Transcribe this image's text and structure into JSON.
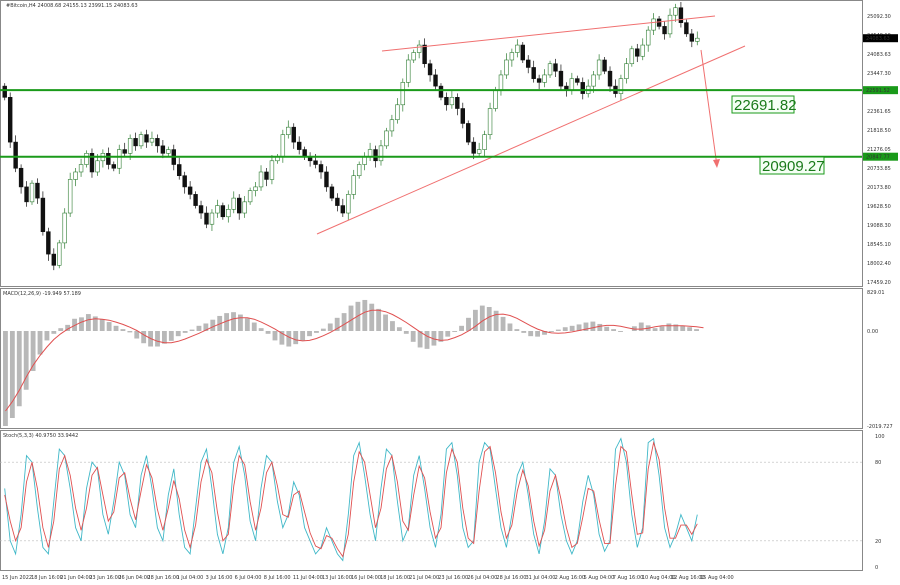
{
  "header": {
    "symbol_info": "#Bitcoin,H4  24008.68 24155.13 23991.15 24083.63",
    "macd_info": "MACD(12,26,9) -19.949 57.189",
    "stoch_info": "Stoch(5,3,3) 40.9750 33.9442"
  },
  "colors": {
    "bull": "#2e7d32",
    "bear": "#111111",
    "support_line": "#1a9a1a",
    "trend_line": "#f07070",
    "macd_hist": "#b8b8b8",
    "signal": "#e05050",
    "stoch_main": "#40b8c8",
    "stoch_signal": "#e05050"
  },
  "levels": {
    "upper_value": "22691.82",
    "lower_value": "20909.27",
    "upper_price": 22691.82,
    "lower_price": 20909.27,
    "upper_tag": "22591.52",
    "lower_tag": "20847.77"
  },
  "chart_data": [
    {
      "type": "candlestick",
      "title": "#Bitcoin,H4",
      "timeframe": "H4",
      "ylim": [
        17499.0,
        25000.0
      ],
      "price_scale_labels": [
        "25092.30",
        "24549.10",
        "24083.63",
        "23447.30",
        "22904.10",
        "22361.65",
        "21818.50",
        "21276.05",
        "20733.85",
        "20173.80",
        "19628.50",
        "19088.30",
        "18545.10",
        "18002.40",
        "17459.20"
      ],
      "x_tick_labels": [
        "15 Jun 2022",
        "18 Jun 16:00",
        "21 Jun 04:00",
        "23 Jun 16:00",
        "26 Jun 04:00",
        "28 Jun 16:00",
        "1 Jul 04:00",
        "3 Jul 16:00",
        "6 Jul 04:00",
        "8 Jul 16:00",
        "11 Jul 04:00",
        "13 Jul 16:00",
        "16 Jul 04:00",
        "18 Jul 16:00",
        "21 Jul 04:00",
        "23 Jul 16:00",
        "26 Jul 04:00",
        "28 Jul 16:00",
        "31 Jul 04:00",
        "2 Aug 16:00",
        "5 Aug 04:00",
        "7 Aug 16:00",
        "10 Aug 04:00",
        "12 Aug 16:00",
        "15 Aug 04:00"
      ],
      "close_path": [
        22500,
        21300,
        20600,
        20100,
        19700,
        20200,
        19800,
        18900,
        18300,
        18000,
        18600,
        19400,
        20300,
        20500,
        20700,
        21000,
        20500,
        20800,
        21000,
        20700,
        20600,
        21100,
        21000,
        21400,
        21200,
        21500,
        21300,
        21400,
        21200,
        21000,
        21100,
        20700,
        20400,
        20100,
        19900,
        19600,
        19400,
        19100,
        19400,
        19600,
        19300,
        19500,
        19800,
        19400,
        19700,
        20000,
        20100,
        20500,
        20300,
        20800,
        20900,
        21500,
        21700,
        21300,
        21100,
        20900,
        20800,
        20700,
        20500,
        20100,
        19800,
        19600,
        19400,
        19900,
        20400,
        20700,
        20900,
        21100,
        20800,
        21200,
        21600,
        21900,
        22300,
        22900,
        23500,
        23700,
        23900,
        23400,
        23100,
        22800,
        22500,
        22300,
        22500,
        22200,
        21800,
        21300,
        21000,
        21100,
        21500,
        22200,
        22700,
        23100,
        23500,
        23700,
        23900,
        23500,
        23300,
        23000,
        22900,
        23100,
        23400,
        23200,
        22800,
        22700,
        23000,
        22900,
        22600,
        22800,
        23100,
        23500,
        23200,
        22800,
        22600,
        23000,
        23400,
        23800,
        23600,
        23900,
        24300,
        24600,
        24400,
        24200,
        24700,
        24900,
        24500,
        24200,
        24000,
        24083.63
      ],
      "current_price": "24083.63"
    },
    {
      "type": "line",
      "title": "MACD(12,26,9)",
      "series": [
        {
          "name": "MACD"
        },
        {
          "name": "Signal"
        }
      ],
      "scale_labels": [
        "829.01",
        "0.00",
        "-2019.727"
      ],
      "histogram_path": [
        -2019,
        -1850,
        -1600,
        -1250,
        -850,
        -500,
        -200,
        -60,
        60,
        130,
        260,
        290,
        360,
        310,
        250,
        190,
        110,
        40,
        -30,
        -160,
        -260,
        -330,
        -330,
        -270,
        -210,
        -110,
        -40,
        30,
        110,
        160,
        240,
        320,
        380,
        400,
        350,
        270,
        180,
        60,
        -60,
        -200,
        -290,
        -330,
        -280,
        -200,
        -110,
        -40,
        50,
        160,
        280,
        380,
        540,
        620,
        660,
        580,
        470,
        350,
        210,
        80,
        -60,
        -230,
        -350,
        -380,
        -310,
        -230,
        -120,
        -20,
        110,
        280,
        450,
        540,
        510,
        430,
        300,
        160,
        40,
        -40,
        -110,
        -120,
        -80,
        -20,
        30,
        80,
        110,
        140,
        180,
        200,
        150,
        90,
        40,
        -20,
        0,
        100,
        180,
        120,
        60,
        100,
        160,
        140,
        110,
        80,
        40
      ],
      "signal_path": [
        -1700,
        -1500,
        -1260,
        -980,
        -730,
        -520,
        -340,
        -180,
        -60,
        40,
        120,
        190,
        240,
        260,
        250,
        230,
        190,
        140,
        80,
        10,
        -80,
        -160,
        -220,
        -250,
        -250,
        -220,
        -170,
        -110,
        -50,
        20,
        90,
        150,
        210,
        260,
        280,
        280,
        250,
        190,
        120,
        40,
        -50,
        -130,
        -190,
        -210,
        -200,
        -160,
        -100,
        -30,
        50,
        140,
        230,
        320,
        400,
        440,
        440,
        410,
        350,
        270,
        180,
        80,
        -20,
        -110,
        -170,
        -200,
        -190,
        -140,
        -80,
        0,
        100,
        210,
        300,
        350,
        360,
        330,
        270,
        190,
        110,
        40,
        -10,
        -40,
        -50,
        -40,
        -20,
        10,
        40,
        70,
        100,
        120,
        120,
        100,
        70,
        40,
        40,
        60,
        90,
        110,
        110,
        110,
        110,
        100,
        90,
        70
      ]
    },
    {
      "type": "line",
      "title": "Stoch(5,3,3)",
      "series": [
        {
          "name": "%K"
        },
        {
          "name": "%D"
        }
      ],
      "scale_labels": [
        "100",
        "80",
        "20",
        "0"
      ],
      "k_path": [
        60,
        20,
        10,
        40,
        85,
        80,
        45,
        15,
        10,
        50,
        90,
        85,
        60,
        30,
        20,
        60,
        80,
        75,
        40,
        25,
        50,
        80,
        70,
        40,
        30,
        70,
        85,
        60,
        30,
        20,
        55,
        75,
        40,
        15,
        10,
        45,
        80,
        90,
        60,
        25,
        10,
        30,
        80,
        92,
        70,
        35,
        20,
        60,
        85,
        80,
        50,
        30,
        40,
        65,
        55,
        30,
        20,
        10,
        15,
        30,
        20,
        10,
        5,
        40,
        85,
        95,
        70,
        40,
        20,
        60,
        90,
        85,
        50,
        20,
        30,
        70,
        85,
        60,
        30,
        15,
        40,
        90,
        95,
        70,
        30,
        15,
        20,
        80,
        95,
        90,
        60,
        30,
        15,
        40,
        70,
        80,
        55,
        25,
        10,
        35,
        75,
        70,
        40,
        20,
        10,
        20,
        50,
        70,
        55,
        25,
        12,
        20,
        90,
        98,
        80,
        40,
        15,
        30,
        95,
        98,
        70,
        30,
        15,
        25,
        40,
        30,
        20,
        40
      ],
      "d_path": [
        55,
        35,
        20,
        30,
        65,
        80,
        60,
        30,
        15,
        35,
        75,
        85,
        70,
        45,
        28,
        45,
        70,
        76,
        55,
        35,
        42,
        68,
        72,
        52,
        36,
        58,
        78,
        68,
        44,
        28,
        45,
        66,
        52,
        28,
        15,
        32,
        65,
        82,
        72,
        42,
        20,
        25,
        62,
        85,
        78,
        50,
        28,
        45,
        72,
        80,
        62,
        40,
        38,
        55,
        58,
        42,
        26,
        16,
        14,
        24,
        22,
        14,
        8,
        25,
        65,
        88,
        80,
        55,
        30,
        45,
        75,
        85,
        65,
        35,
        28,
        55,
        77,
        68,
        42,
        22,
        30,
        72,
        90,
        80,
        45,
        22,
        18,
        58,
        88,
        92,
        72,
        42,
        22,
        32,
        58,
        74,
        62,
        35,
        16,
        28,
        58,
        70,
        52,
        30,
        15,
        18,
        38,
        60,
        58,
        36,
        18,
        18,
        62,
        92,
        88,
        55,
        25,
        26,
        75,
        95,
        82,
        45,
        22,
        22,
        32,
        32,
        25,
        33
      ]
    }
  ]
}
